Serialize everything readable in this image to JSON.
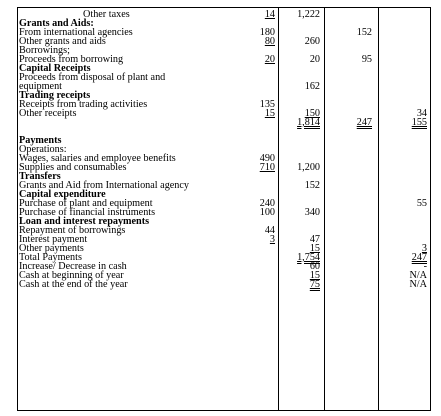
{
  "rows": [
    {
      "label": "Other taxes",
      "indent": true,
      "bold": false,
      "c1": "14",
      "c1_style": "u",
      "c2": "1,222",
      "c2_style": "",
      "c3": "",
      "c3_style": "",
      "c4": "",
      "c4_style": ""
    },
    {
      "label": "Grants and Aids:",
      "indent": false,
      "bold": true,
      "c1": "",
      "c1_style": "",
      "c2": "",
      "c2_style": "",
      "c3": "",
      "c3_style": "",
      "c4": "",
      "c4_style": ""
    },
    {
      "label": "From international agencies",
      "indent": false,
      "bold": false,
      "c1": "180",
      "c1_style": "",
      "c2": "",
      "c2_style": "",
      "c3": "152",
      "c3_style": "",
      "c4": "",
      "c4_style": ""
    },
    {
      "label": "Other grants and aids",
      "indent": false,
      "bold": false,
      "c1": "80",
      "c1_style": "u",
      "c2": "260",
      "c2_style": "",
      "c3": "",
      "c3_style": "",
      "c4": "",
      "c4_style": ""
    },
    {
      "label": "Borrowings;",
      "indent": false,
      "bold": false,
      "c1": "",
      "c1_style": "",
      "c2": "",
      "c2_style": "",
      "c3": "",
      "c3_style": "",
      "c4": "",
      "c4_style": ""
    },
    {
      "label": "Proceeds from borrowing",
      "indent": false,
      "bold": false,
      "c1": "20",
      "c1_style": "u",
      "c2": "20",
      "c2_style": "",
      "c3": "95",
      "c3_style": "",
      "c4": "",
      "c4_style": ""
    },
    {
      "label": "Capital Receipts",
      "indent": false,
      "bold": true,
      "c1": "",
      "c1_style": "",
      "c2": "",
      "c2_style": "",
      "c3": "",
      "c3_style": "",
      "c4": "",
      "c4_style": ""
    },
    {
      "label": "Proceeds from disposal of plant and",
      "indent": false,
      "bold": false,
      "c1": "",
      "c1_style": "",
      "c2": "",
      "c2_style": "",
      "c3": "",
      "c3_style": "",
      "c4": "",
      "c4_style": ""
    },
    {
      "label": "equipment",
      "indent": false,
      "bold": false,
      "c1": "",
      "c1_style": "",
      "c2": "162",
      "c2_style": "",
      "c3": "",
      "c3_style": "",
      "c4": "",
      "c4_style": ""
    },
    {
      "label": "Trading receipts",
      "indent": false,
      "bold": true,
      "c1": "",
      "c1_style": "",
      "c2": "",
      "c2_style": "",
      "c3": "",
      "c3_style": "",
      "c4": "",
      "c4_style": ""
    },
    {
      "label": "Receipts from trading activities",
      "indent": false,
      "bold": false,
      "c1": "135",
      "c1_style": "",
      "c2": "",
      "c2_style": "",
      "c3": "",
      "c3_style": "",
      "c4": "",
      "c4_style": ""
    },
    {
      "label": "Other receipts",
      "indent": false,
      "bold": false,
      "c1": "15",
      "c1_style": "u",
      "c2": "150",
      "c2_style": "u",
      "c3": "",
      "c3_style": "",
      "c4": "34",
      "c4_style": ""
    },
    {
      "label": "",
      "indent": false,
      "bold": false,
      "c1": "",
      "c1_style": "",
      "c2": "1,814",
      "c2_style": "uu",
      "c3": "247",
      "c3_style": "uu",
      "c4": "155",
      "c4_style": "uu"
    },
    {
      "label": "",
      "indent": false,
      "bold": false,
      "c1": "",
      "c1_style": "",
      "c2": "",
      "c2_style": "",
      "c3": "",
      "c3_style": "",
      "c4": "",
      "c4_style": ""
    },
    {
      "label": "Payments",
      "indent": false,
      "bold": true,
      "c1": "",
      "c1_style": "",
      "c2": "",
      "c2_style": "",
      "c3": "",
      "c3_style": "",
      "c4": "",
      "c4_style": ""
    },
    {
      "label": "Operations:",
      "indent": false,
      "bold": false,
      "c1": "",
      "c1_style": "",
      "c2": "",
      "c2_style": "",
      "c3": "",
      "c3_style": "",
      "c4": "",
      "c4_style": ""
    },
    {
      "label": "Wages, salaries and employee benefits",
      "indent": false,
      "bold": false,
      "c1": "490",
      "c1_style": "",
      "c2": "",
      "c2_style": "",
      "c3": "",
      "c3_style": "",
      "c4": "",
      "c4_style": ""
    },
    {
      "label": "Supplies and consumables",
      "indent": false,
      "bold": false,
      "c1": "710",
      "c1_style": "u",
      "c2": "1,200",
      "c2_style": "",
      "c3": "",
      "c3_style": "",
      "c4": "",
      "c4_style": ""
    },
    {
      "label": "Transfers",
      "indent": false,
      "bold": true,
      "c1": "",
      "c1_style": "",
      "c2": "",
      "c2_style": "",
      "c3": "",
      "c3_style": "",
      "c4": "",
      "c4_style": ""
    },
    {
      "label": "Grants and Aid from International agency",
      "indent": false,
      "bold": false,
      "c1": "",
      "c1_style": "",
      "c2": "152",
      "c2_style": "",
      "c3": "",
      "c3_style": "",
      "c4": "",
      "c4_style": ""
    },
    {
      "label": "Capital expenditure",
      "indent": false,
      "bold": true,
      "c1": "",
      "c1_style": "",
      "c2": "",
      "c2_style": "",
      "c3": "",
      "c3_style": "",
      "c4": "",
      "c4_style": ""
    },
    {
      "label": "Purchase of plant and equipment",
      "indent": false,
      "bold": false,
      "c1": "240",
      "c1_style": "",
      "c2": "",
      "c2_style": "",
      "c3": "",
      "c3_style": "",
      "c4": "55",
      "c4_style": ""
    },
    {
      "label": "Purchase of financial instruments",
      "indent": false,
      "bold": false,
      "c1": "100",
      "c1_style": "",
      "c2": "340",
      "c2_style": "",
      "c3": "",
      "c3_style": "",
      "c4": "",
      "c4_style": ""
    },
    {
      "label": "Loan and interest repayments",
      "indent": false,
      "bold": true,
      "c1": "",
      "c1_style": "",
      "c2": "",
      "c2_style": "",
      "c3": "",
      "c3_style": "",
      "c4": "",
      "c4_style": ""
    },
    {
      "label": "Repayment of borrowings",
      "indent": false,
      "bold": false,
      "c1": "44",
      "c1_style": "",
      "c2": "",
      "c2_style": "",
      "c3": "",
      "c3_style": "",
      "c4": "",
      "c4_style": ""
    },
    {
      "label": "Interest payment",
      "indent": false,
      "bold": false,
      "c1": "3",
      "c1_style": "u",
      "c2": "47",
      "c2_style": "",
      "c3": "",
      "c3_style": "",
      "c4": "",
      "c4_style": ""
    },
    {
      "label": "Other payments",
      "indent": false,
      "bold": false,
      "c1": "",
      "c1_style": "",
      "c2": "15",
      "c2_style": "u",
      "c3": "",
      "c3_style": "",
      "c4": "3",
      "c4_style": "u"
    },
    {
      "label": "Total Payments",
      "indent": false,
      "bold": false,
      "c1": "",
      "c1_style": "",
      "c2": "1,754",
      "c2_style": "uu",
      "c3": "",
      "c3_style": "",
      "c4": "247",
      "c4_style": "uu"
    },
    {
      "label": "Increase/ Decrease in cash",
      "indent": false,
      "bold": false,
      "c1": "",
      "c1_style": "",
      "c2": "60",
      "c2_style": "",
      "c3": "",
      "c3_style": "",
      "c4": "-",
      "c4_style": ""
    },
    {
      "label": "Cash at beginning of year",
      "indent": false,
      "bold": false,
      "c1": "",
      "c1_style": "",
      "c2": "15",
      "c2_style": "u",
      "c3": "",
      "c3_style": "",
      "c4": "N/A",
      "c4_style": ""
    },
    {
      "label": "Cash at the end of the year",
      "indent": false,
      "bold": false,
      "c1": "",
      "c1_style": "",
      "c2": "75",
      "c2_style": "uu",
      "c3": "",
      "c3_style": "",
      "c4": "N/A",
      "c4_style": ""
    }
  ]
}
